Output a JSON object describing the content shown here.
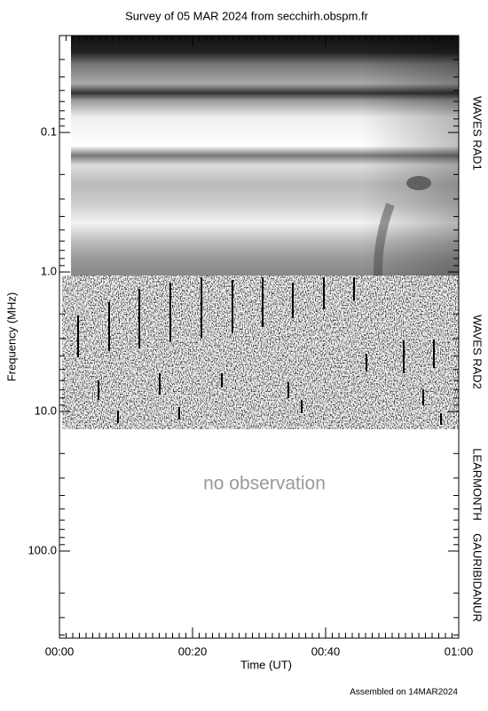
{
  "chart_data": {
    "type": "spectrogram",
    "title": "Survey of 05 MAR 2024 from secchirh.obspm.fr",
    "xlabel": "Time (UT)",
    "ylabel": "Frequency (MHz)",
    "xlim": [
      0,
      60
    ],
    "xticks": [
      {
        "value": 0,
        "label": "00:00"
      },
      {
        "value": 20,
        "label": "00:20"
      },
      {
        "value": 40,
        "label": "00:40"
      },
      {
        "value": 60,
        "label": "01:00"
      }
    ],
    "ylim": [
      0.0202,
      421
    ],
    "yscale": "log",
    "yinverted": true,
    "yticks": [
      0.1,
      {
        "value": 1,
        "label": "1.0"
      },
      {
        "value": 10,
        "label": "10.0"
      },
      {
        "value": 100,
        "label": "100.0"
      }
    ],
    "annotation": "no observation",
    "instruments": [
      "WAVES RAD1",
      "WAVES RAD2",
      "LEARMONTH",
      "GAURIBIDANUR"
    ],
    "footer": "Assembled on 14MAR2024"
  }
}
